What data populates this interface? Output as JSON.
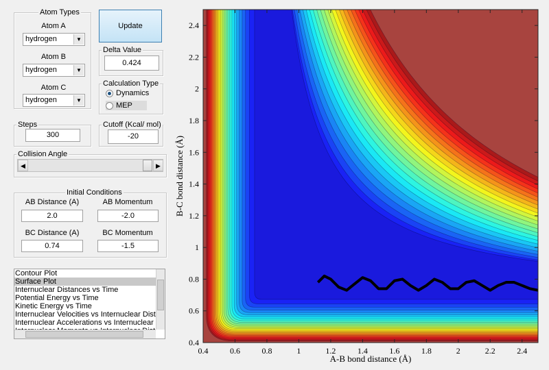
{
  "atom_types": {
    "title": "Atom Types",
    "atoms": [
      {
        "label": "Atom A",
        "value": "hydrogen"
      },
      {
        "label": "Atom B",
        "value": "hydrogen"
      },
      {
        "label": "Atom C",
        "value": "hydrogen"
      }
    ]
  },
  "update_button": "Update",
  "delta_value": {
    "title": "Delta Value",
    "value": "0.424"
  },
  "calculation_type": {
    "title": "Calculation Type",
    "options": [
      "Dynamics",
      "MEP"
    ],
    "selected": 0
  },
  "steps": {
    "title": "Steps",
    "value": "300"
  },
  "cutoff": {
    "title": "Cutoff (Kcal/ mol)",
    "value": "-20"
  },
  "collision_angle": {
    "title": "Collision Angle"
  },
  "initial_conditions": {
    "title": "Initial Conditions",
    "fields": [
      {
        "label": "AB Distance (A)",
        "value": "2.0"
      },
      {
        "label": "AB Momentum",
        "value": "-2.0"
      },
      {
        "label": "BC Distance (A)",
        "value": "0.74"
      },
      {
        "label": "BC Momentum",
        "value": "-1.5"
      }
    ]
  },
  "plot_list": {
    "items": [
      "Contour Plot",
      "Surface Plot",
      "Internuclear Distances vs Time",
      "Potential Energy vs Time",
      "Kinetic Energy vs Time",
      "Internuclear Velocities vs Internuclear Distance",
      "Internuclear Accelerations vs Internuclear Dista",
      "Internuclear Momenta vs Internuclear Distance"
    ],
    "selected": 1
  },
  "chart_data": {
    "type": "contour",
    "xlabel": "A-B bond distance (Å)",
    "ylabel": "B-C bond distance (Å)",
    "xlim": [
      0.4,
      2.5
    ],
    "ylim": [
      0.4,
      2.5
    ],
    "xticks": [
      0.4,
      0.6,
      0.8,
      1,
      1.2,
      1.4,
      1.6,
      1.8,
      2,
      2.2,
      2.4
    ],
    "yticks": [
      0.4,
      0.6,
      0.8,
      1,
      1.2,
      1.4,
      1.6,
      1.8,
      2,
      2.2,
      2.4
    ],
    "trajectory": {
      "color": "#000000",
      "x": [
        1.12,
        1.16,
        1.2,
        1.25,
        1.3,
        1.35,
        1.4,
        1.45,
        1.5,
        1.55,
        1.6,
        1.65,
        1.7,
        1.75,
        1.8,
        1.85,
        1.9,
        1.95,
        2.0,
        2.05,
        2.1,
        2.15,
        2.2,
        2.25,
        2.3,
        2.35,
        2.4,
        2.45,
        2.5
      ],
      "y": [
        0.78,
        0.82,
        0.8,
        0.75,
        0.73,
        0.77,
        0.81,
        0.79,
        0.74,
        0.74,
        0.79,
        0.8,
        0.76,
        0.73,
        0.76,
        0.8,
        0.78,
        0.74,
        0.74,
        0.78,
        0.79,
        0.76,
        0.73,
        0.76,
        0.78,
        0.78,
        0.76,
        0.74,
        0.73
      ]
    }
  }
}
